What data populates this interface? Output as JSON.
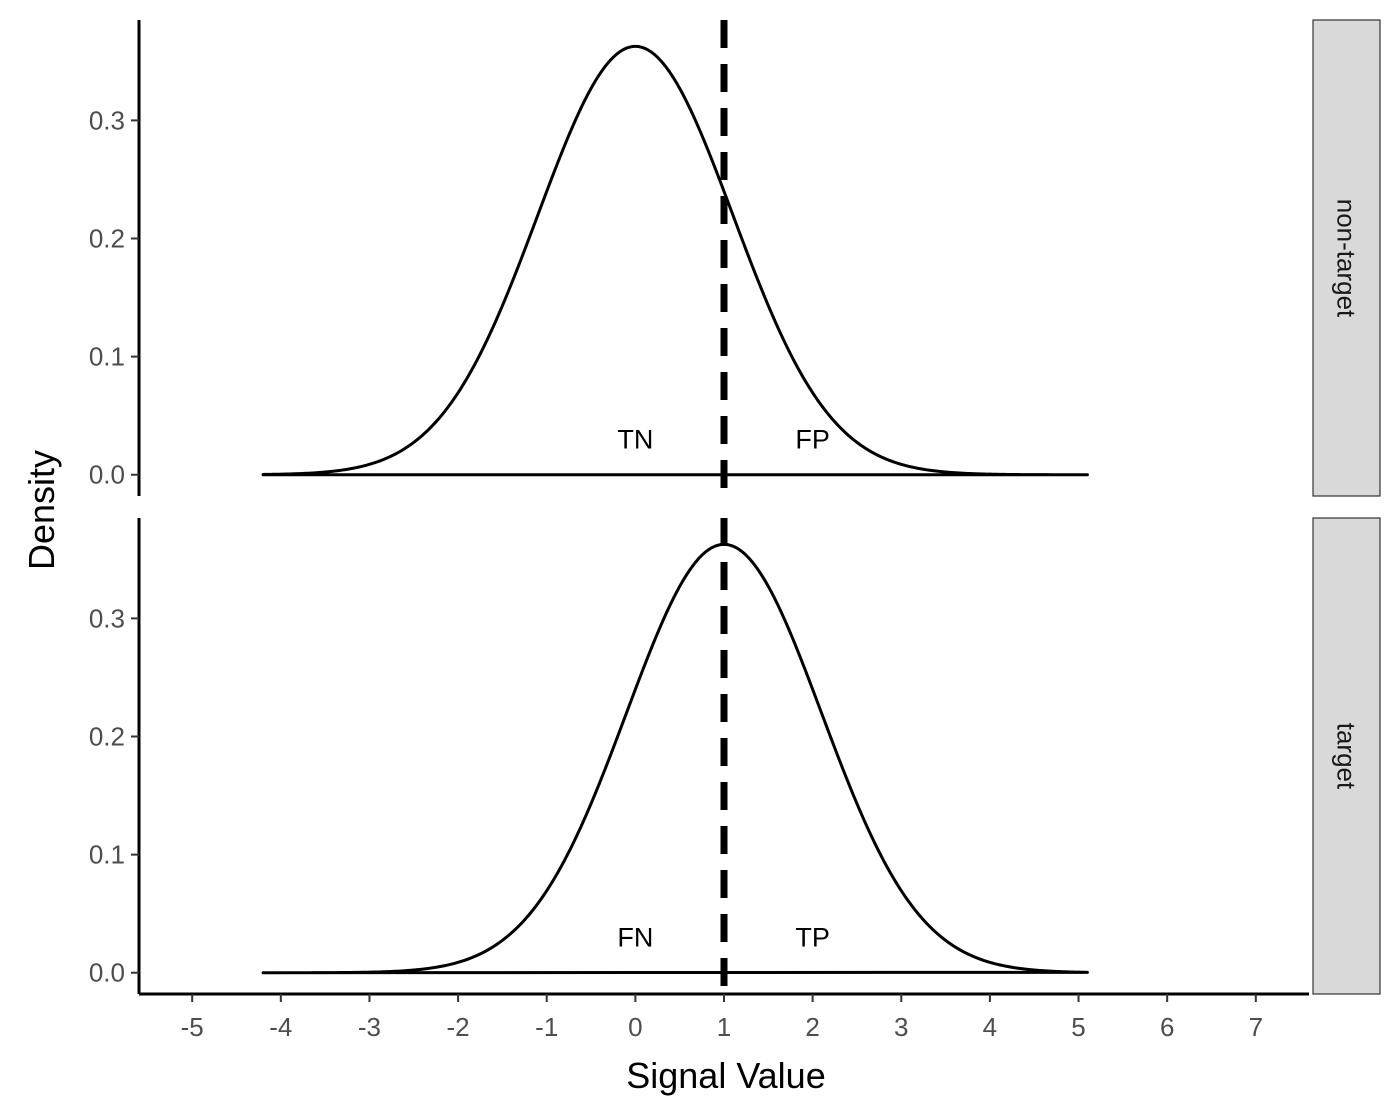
{
  "chart_data": {
    "type": "line",
    "xlabel": "Signal Value",
    "ylabel": "Density",
    "xlim": [
      -5.6,
      7.6
    ],
    "ylim": [
      -0.018,
      0.385
    ],
    "x_ticks": [
      "-5",
      "-4",
      "-3",
      "-2",
      "-1",
      "0",
      "1",
      "2",
      "3",
      "4",
      "5",
      "6",
      "7"
    ],
    "y_ticks": [
      "0.0",
      "0.1",
      "0.2",
      "0.3"
    ],
    "threshold": 1,
    "curve_range": [
      -4.2,
      5.1
    ],
    "grid": false,
    "facets": [
      {
        "label": "non-target",
        "mean": 0,
        "sd": 1.1,
        "regions": [
          {
            "label": "TN",
            "x": 0,
            "y": 0.03
          },
          {
            "label": "FP",
            "x": 2,
            "y": 0.03
          }
        ]
      },
      {
        "label": "target",
        "mean": 1,
        "sd": 1.1,
        "regions": [
          {
            "label": "FN",
            "x": 0,
            "y": 0.03
          },
          {
            "label": "TP",
            "x": 2,
            "y": 0.03
          }
        ]
      }
    ]
  }
}
